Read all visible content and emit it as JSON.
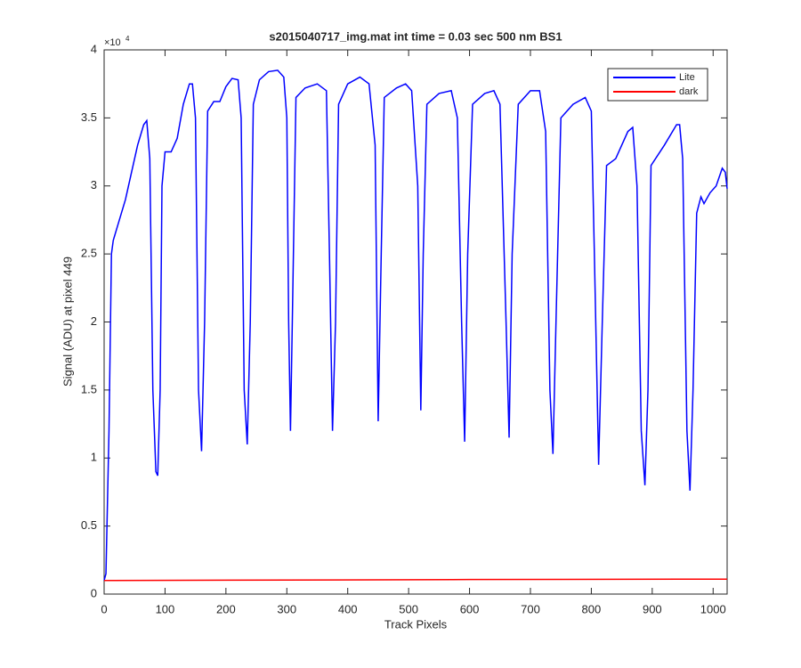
{
  "chart_data": {
    "type": "line",
    "title": "s2015040717_img.mat int time = 0.03 sec  500 nm BS1",
    "xlabel": "Track Pixels",
    "ylabel": "Signal (ADU) at pixel 449",
    "y_multiplier": {
      "base": "×10",
      "exponent": "4"
    },
    "xlim": [
      0,
      1023
    ],
    "ylim": [
      0,
      40000
    ],
    "xticks": [
      0,
      100,
      200,
      300,
      400,
      500,
      600,
      700,
      800,
      900,
      1000
    ],
    "yticks": [
      {
        "value": 0,
        "label": "0"
      },
      {
        "value": 5000,
        "label": "0.5"
      },
      {
        "value": 10000,
        "label": "1"
      },
      {
        "value": 15000,
        "label": "1.5"
      },
      {
        "value": 20000,
        "label": "2"
      },
      {
        "value": 25000,
        "label": "2.5"
      },
      {
        "value": 30000,
        "label": "3"
      },
      {
        "value": 35000,
        "label": "3.5"
      },
      {
        "value": 40000,
        "label": "4"
      }
    ],
    "grid": false,
    "legend": "top-right",
    "series": [
      {
        "name": "Lite",
        "color": "#0000ff",
        "x": [
          0,
          3,
          8,
          12,
          15,
          25,
          35,
          45,
          55,
          65,
          70,
          75,
          80,
          85,
          88,
          92,
          95,
          100,
          110,
          120,
          130,
          140,
          145,
          150,
          155,
          160,
          165,
          170,
          180,
          190,
          200,
          210,
          220,
          225,
          230,
          235,
          240,
          245,
          255,
          270,
          285,
          295,
          300,
          303,
          306,
          309,
          315,
          330,
          350,
          365,
          370,
          375,
          380,
          385,
          400,
          420,
          435,
          445,
          450,
          455,
          460,
          480,
          495,
          505,
          515,
          520,
          524,
          530,
          550,
          570,
          580,
          587,
          592,
          597,
          605,
          625,
          640,
          650,
          660,
          665,
          670,
          680,
          700,
          715,
          725,
          732,
          737,
          742,
          750,
          770,
          790,
          800,
          805,
          812,
          818,
          825,
          840,
          860,
          868,
          875,
          882,
          888,
          893,
          898,
          920,
          940,
          945,
          950,
          957,
          962,
          967,
          973,
          980,
          985,
          995,
          1005,
          1015,
          1020,
          1023
        ],
        "values": [
          1000,
          1500,
          12000,
          25000,
          26000,
          27500,
          29000,
          31000,
          33000,
          34500,
          34800,
          32000,
          15000,
          9000,
          8700,
          15000,
          30000,
          32500,
          32500,
          33500,
          36000,
          37500,
          37500,
          35000,
          15000,
          10500,
          20000,
          35500,
          36200,
          36200,
          37300,
          37900,
          37800,
          35000,
          15000,
          11000,
          20000,
          36000,
          37800,
          38400,
          38500,
          38000,
          35000,
          20000,
          12000,
          20000,
          36500,
          37200,
          37500,
          37000,
          25000,
          12000,
          20000,
          36000,
          37500,
          38000,
          37500,
          33000,
          12700,
          25000,
          36500,
          37200,
          37500,
          37000,
          30000,
          13500,
          25000,
          36000,
          36800,
          37000,
          35000,
          20000,
          11200,
          25000,
          36000,
          36800,
          37000,
          36000,
          20000,
          11500,
          25000,
          36000,
          37000,
          37000,
          34000,
          15000,
          10300,
          20000,
          35000,
          36000,
          36500,
          35500,
          25000,
          9500,
          20000,
          31500,
          32000,
          34000,
          34300,
          30000,
          12000,
          8000,
          15000,
          31500,
          33000,
          34500,
          34500,
          32000,
          12000,
          7600,
          15000,
          28000,
          29200,
          28700,
          29500,
          30000,
          31300,
          31000,
          29800
        ]
      },
      {
        "name": "dark",
        "color": "#ff0000",
        "x": [
          0,
          300,
          600,
          1023
        ],
        "values": [
          1000,
          1030,
          1070,
          1100
        ]
      }
    ]
  }
}
